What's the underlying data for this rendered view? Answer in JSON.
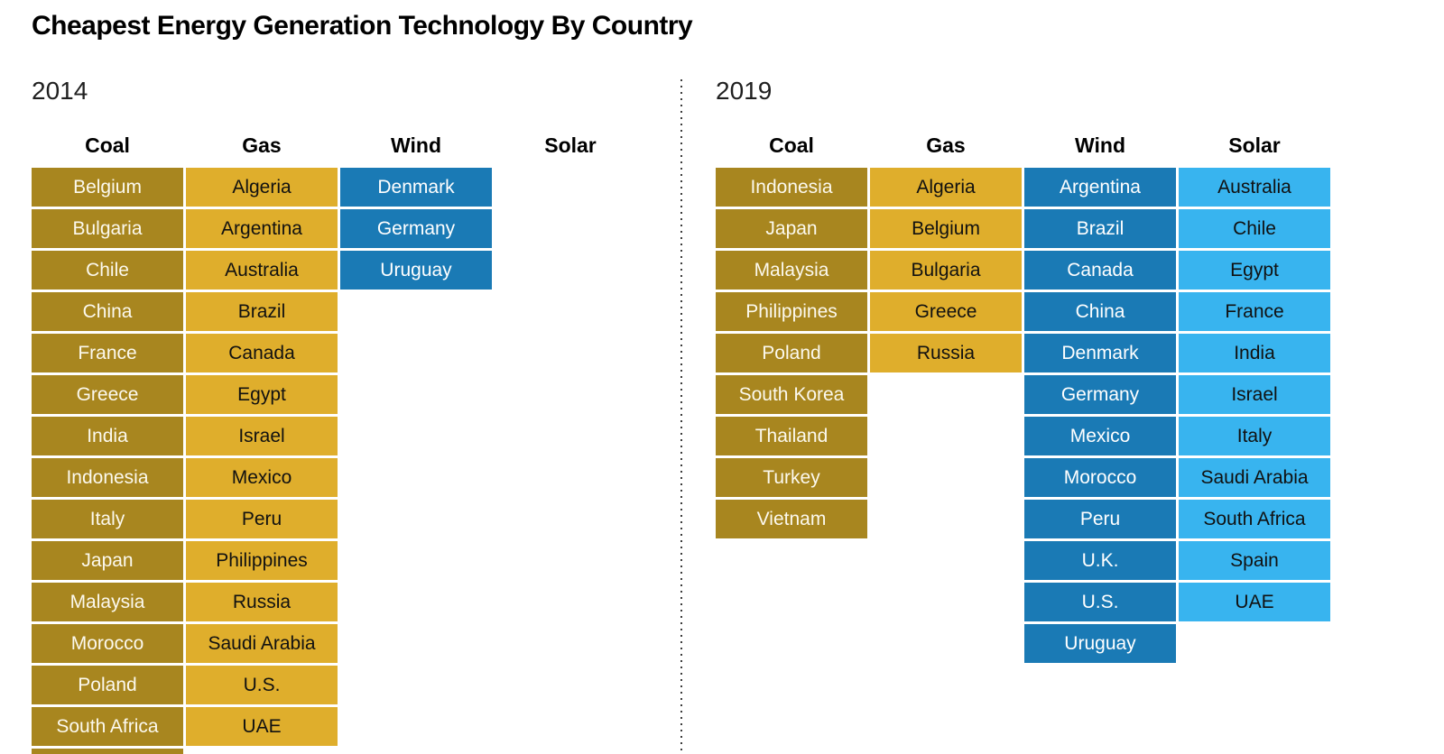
{
  "title": "Cheapest Energy Generation Technology By Country",
  "colors": {
    "coal_bg": "#A8861F",
    "gas_bg": "#DFAE2C",
    "wind_bg": "#1A7AB5",
    "solar_bg": "#38B4EF",
    "coal_text": "#FCF9EE",
    "gas_text": "#111111",
    "wind_text": "#FFFFFF",
    "solar_text": "#111111",
    "divider_dot": "#3C3C3C",
    "title_text": "#000000"
  },
  "chart_data": {
    "type": "table",
    "title": "Cheapest Energy Generation Technology By Country",
    "columns": [
      "Coal",
      "Gas",
      "Wind",
      "Solar"
    ],
    "panels": [
      {
        "year": "2014",
        "categories": {
          "coal": [
            "Belgium",
            "Bulgaria",
            "Chile",
            "China",
            "France",
            "Greece",
            "India",
            "Indonesia",
            "Italy",
            "Japan",
            "Malaysia",
            "Morocco",
            "Poland",
            "South Africa"
          ],
          "gas": [
            "Algeria",
            "Argentina",
            "Australia",
            "Brazil",
            "Canada",
            "Egypt",
            "Israel",
            "Mexico",
            "Peru",
            "Philippines",
            "Russia",
            "Saudi Arabia",
            "U.S.",
            "UAE"
          ],
          "wind": [
            "Denmark",
            "Germany",
            "Uruguay"
          ],
          "solar": []
        },
        "coal_clipped_extra_cell": true
      },
      {
        "year": "2019",
        "categories": {
          "coal": [
            "Indonesia",
            "Japan",
            "Malaysia",
            "Philippines",
            "Poland",
            "South Korea",
            "Thailand",
            "Turkey",
            "Vietnam"
          ],
          "gas": [
            "Algeria",
            "Belgium",
            "Bulgaria",
            "Greece",
            "Russia"
          ],
          "wind": [
            "Argentina",
            "Brazil",
            "Canada",
            "China",
            "Denmark",
            "Germany",
            "Mexico",
            "Morocco",
            "Peru",
            "U.K.",
            "U.S.",
            "Uruguay"
          ],
          "solar": [
            "Australia",
            "Chile",
            "Egypt",
            "France",
            "India",
            "Israel",
            "Italy",
            "Saudi Arabia",
            "South Africa",
            "Spain",
            "UAE"
          ]
        },
        "coal_clipped_extra_cell": false
      }
    ]
  }
}
